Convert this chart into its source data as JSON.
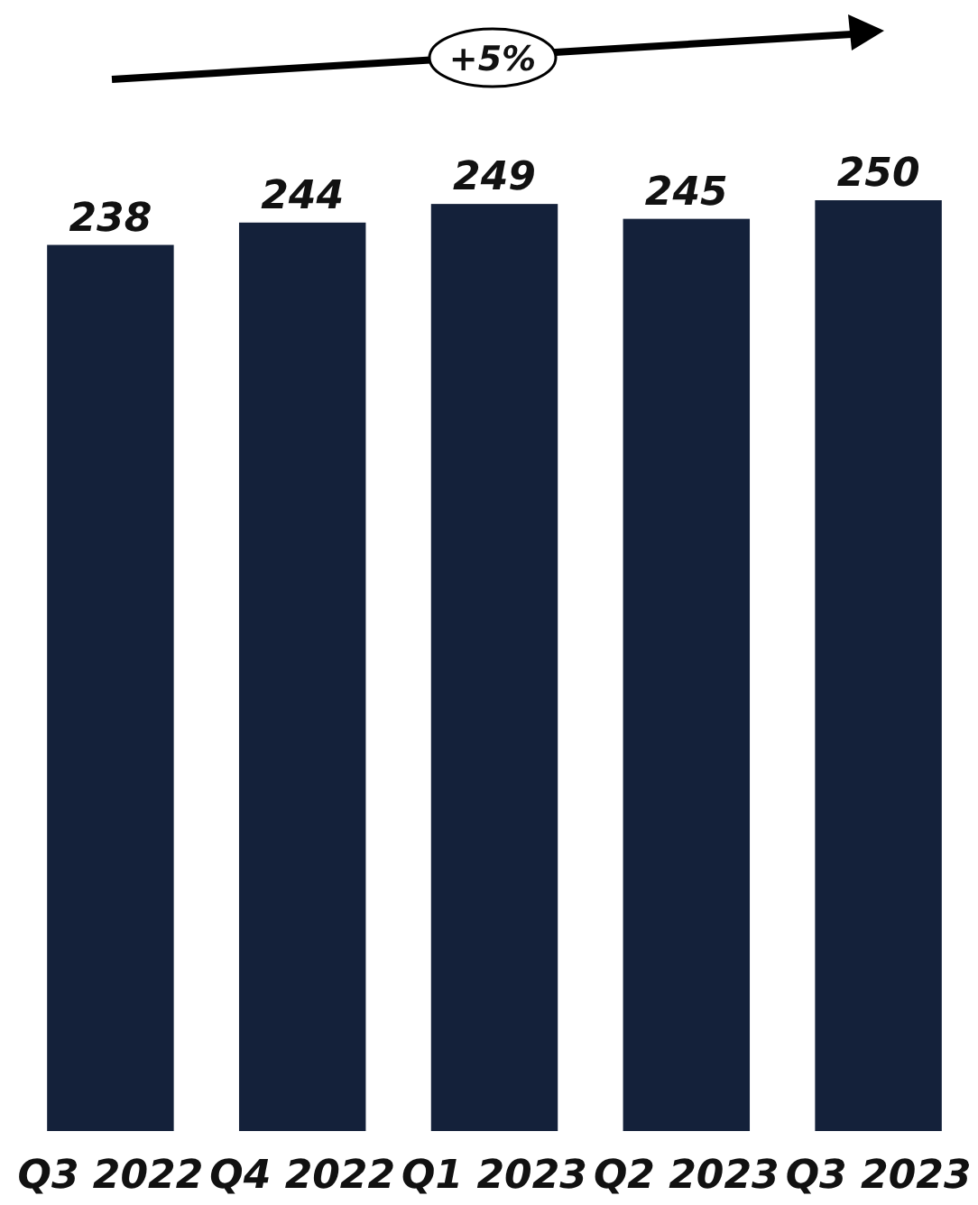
{
  "chart_data": {
    "type": "bar",
    "categories": [
      "Q3 2022",
      "Q4 2022",
      "Q1 2023",
      "Q2 2023",
      "Q3 2023"
    ],
    "values": [
      238,
      244,
      249,
      245,
      250
    ],
    "color": "#14213a",
    "data_labels": true,
    "annotations": [
      "+5%"
    ]
  }
}
